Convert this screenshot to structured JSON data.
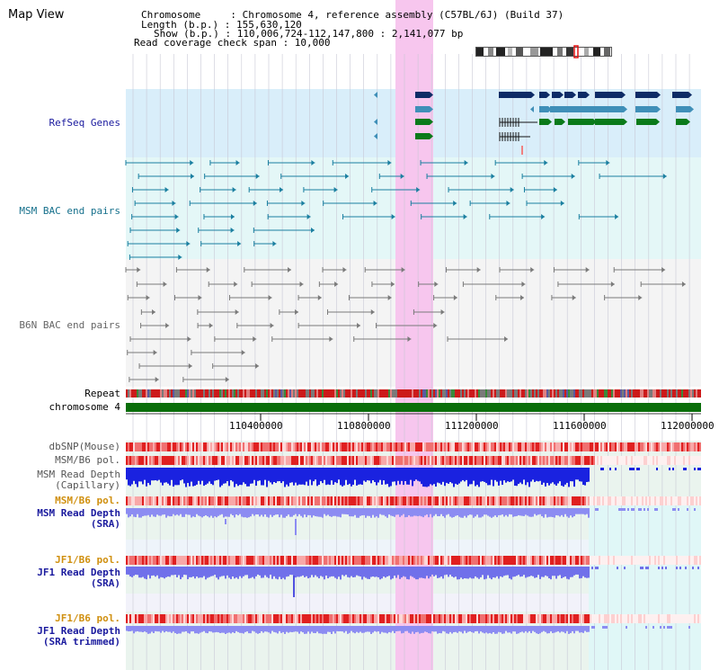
{
  "page": {
    "title": "Map View"
  },
  "header": {
    "chromosome_line": "Chromosome     : Chromosome 4, reference assembly (C57BL/6J) (Build 37)",
    "length_line": "Length (b.p.) : 155,630,120",
    "show_line": "Show (b.p.) : 110,006,724-112,147,800 : 2,141,077 bp",
    "coverage_line": "Read coverage check span : 10,000"
  },
  "tracks": {
    "refseq": "RefSeq Genes",
    "msm_bac": "MSM BAC end pairs",
    "b6n_bac": "B6N BAC end pairs",
    "repeat": "Repeat",
    "chromosome": "chromosome 4",
    "dbsnp": "dbSNP(Mouse)",
    "msm_b6_pol_1": "MSM/B6 pol.",
    "msm_depth_cap": "MSM Read Depth\n(Capillary)",
    "msm_b6_pol_2": "MSM/B6 pol.",
    "msm_depth_sra": "MSM Read Depth\n(SRA)",
    "jf1_b6_pol_1": "JF1/B6 pol.",
    "jf1_depth_sra": "JF1 Read Depth\n(SRA)",
    "jf1_b6_pol_2": "JF1/B6 pol.",
    "jf1_depth_trim": "JF1 Read Depth\n(SRA trimmed)"
  },
  "axis": {
    "ticks": [
      "110400000",
      "110800000",
      "111200000",
      "111600000",
      "112000000"
    ]
  },
  "colors": {
    "refseq_bg": "#d9eefa",
    "bac_bg": "#e4f7f7",
    "highlight": "#f7c6ee",
    "gene_navy": "#0d2b66",
    "gene_blue": "#3f8fb8",
    "gene_green": "#0a7a1a",
    "msm_bac": "#1a7fa0",
    "b6n_bac": "#7a7a7a",
    "chrom_bar": "#0a6e0a",
    "depth_blue": "#1a22e0",
    "depth_light": "#8c8cf2",
    "label_navy": "#1a1a9e",
    "label_teal": "#16708c",
    "label_gray": "#666666",
    "label_orange": "#d09010"
  }
}
